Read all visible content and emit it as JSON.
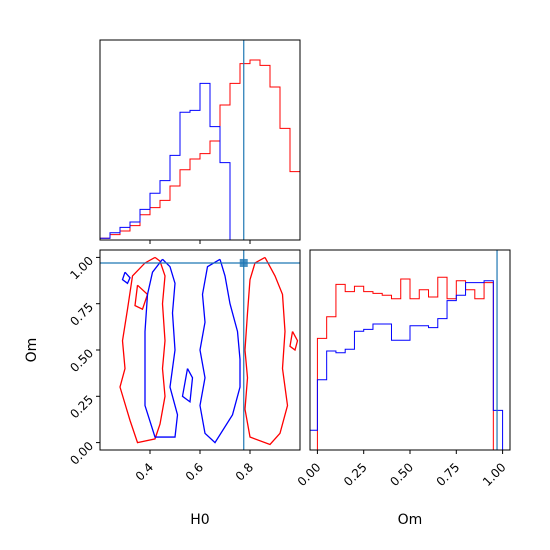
{
  "chart_data": {
    "type": "corner",
    "parameters": [
      "H0",
      "Om"
    ],
    "colors": {
      "red": "#ff0000",
      "blue": "#0000ff",
      "truth": "#1f77b4"
    },
    "truth": {
      "H0": 0.775,
      "Om": 0.97
    },
    "xlabel": "H0",
    "ylabel": "Om",
    "xlabel_om": "Om",
    "h0_axis": {
      "range": [
        0.2,
        1.0
      ],
      "ticks": [
        0.4,
        0.6,
        0.8
      ],
      "tick_labels": [
        "0.4",
        "0.6",
        "0.8"
      ]
    },
    "om_axis": {
      "range": [
        -0.04,
        1.04
      ],
      "ticks": [
        0.0,
        0.25,
        0.5,
        0.75,
        1.0
      ],
      "tick_labels": [
        "0.00",
        "0.25",
        "0.50",
        "0.75",
        "1.00"
      ]
    },
    "h0_hist": {
      "edges": [
        0.2,
        0.24,
        0.28,
        0.32,
        0.36,
        0.4,
        0.44,
        0.48,
        0.52,
        0.56,
        0.6,
        0.64,
        0.68,
        0.72,
        0.76,
        0.8,
        0.84,
        0.88,
        0.92,
        0.96,
        1.0
      ],
      "red": [
        0.01,
        0.03,
        0.05,
        0.08,
        0.14,
        0.18,
        0.22,
        0.3,
        0.39,
        0.45,
        0.48,
        0.55,
        0.75,
        0.87,
        0.98,
        1.0,
        0.97,
        0.85,
        0.62,
        0.38
      ],
      "blue": [
        0.01,
        0.04,
        0.07,
        0.1,
        0.17,
        0.26,
        0.33,
        0.47,
        0.71,
        0.72,
        0.87,
        0.63,
        0.43,
        0.0,
        0.0,
        0.0,
        0.0,
        0.0,
        0.0,
        0.0
      ]
    },
    "om_hist": {
      "edges": [
        -0.04,
        0.0,
        0.05,
        0.1,
        0.15,
        0.2,
        0.25,
        0.3,
        0.35,
        0.4,
        0.45,
        0.5,
        0.55,
        0.6,
        0.65,
        0.7,
        0.75,
        0.8,
        0.85,
        0.9,
        0.95,
        1.0
      ],
      "red": [
        0.0,
        0.62,
        0.74,
        0.92,
        0.88,
        0.91,
        0.88,
        0.87,
        0.86,
        0.84,
        0.95,
        0.84,
        0.89,
        0.85,
        0.96,
        0.84,
        0.94,
        0.89,
        0.84,
        0.93,
        0.0
      ],
      "blue": [
        0.11,
        0.39,
        0.55,
        0.54,
        0.56,
        0.66,
        0.67,
        0.7,
        0.7,
        0.61,
        0.61,
        0.69,
        0.69,
        0.68,
        0.73,
        0.83,
        0.86,
        0.93,
        0.93,
        0.94,
        0.22
      ]
    },
    "contours": {
      "red": [
        [
          [
            0.42,
            1.0
          ],
          [
            0.38,
            0.97
          ],
          [
            0.33,
            0.9
          ],
          [
            0.31,
            0.72
          ],
          [
            0.29,
            0.55
          ],
          [
            0.3,
            0.4
          ],
          [
            0.28,
            0.3
          ],
          [
            0.32,
            0.12
          ],
          [
            0.35,
            0.0
          ],
          [
            0.42,
            0.02
          ],
          [
            0.44,
            0.1
          ],
          [
            0.46,
            0.25
          ],
          [
            0.45,
            0.4
          ],
          [
            0.46,
            0.55
          ],
          [
            0.45,
            0.75
          ],
          [
            0.46,
            0.9
          ],
          [
            0.44,
            0.98
          ],
          [
            0.42,
            1.0
          ]
        ],
        [
          [
            0.86,
            1.0
          ],
          [
            0.9,
            0.9
          ],
          [
            0.93,
            0.8
          ],
          [
            0.94,
            0.6
          ],
          [
            0.93,
            0.4
          ],
          [
            0.95,
            0.2
          ],
          [
            0.92,
            0.05
          ],
          [
            0.88,
            -0.01
          ],
          [
            0.8,
            0.03
          ],
          [
            0.78,
            0.18
          ],
          [
            0.79,
            0.35
          ],
          [
            0.78,
            0.5
          ],
          [
            0.79,
            0.7
          ],
          [
            0.8,
            0.88
          ],
          [
            0.82,
            0.97
          ],
          [
            0.86,
            1.0
          ]
        ],
        [
          [
            0.35,
            0.85
          ],
          [
            0.39,
            0.8
          ],
          [
            0.37,
            0.72
          ],
          [
            0.34,
            0.74
          ],
          [
            0.35,
            0.85
          ]
        ],
        [
          [
            0.97,
            0.6
          ],
          [
            0.99,
            0.55
          ],
          [
            0.98,
            0.5
          ],
          [
            0.96,
            0.52
          ],
          [
            0.97,
            0.6
          ]
        ]
      ],
      "blue": [
        [
          [
            0.45,
            0.99
          ],
          [
            0.41,
            0.92
          ],
          [
            0.39,
            0.8
          ],
          [
            0.38,
            0.6
          ],
          [
            0.38,
            0.4
          ],
          [
            0.38,
            0.2
          ],
          [
            0.42,
            0.03
          ],
          [
            0.5,
            0.03
          ],
          [
            0.51,
            0.15
          ],
          [
            0.48,
            0.3
          ],
          [
            0.5,
            0.5
          ],
          [
            0.49,
            0.7
          ],
          [
            0.5,
            0.86
          ],
          [
            0.48,
            0.95
          ],
          [
            0.45,
            0.99
          ]
        ],
        [
          [
            0.68,
            0.99
          ],
          [
            0.7,
            0.9
          ],
          [
            0.72,
            0.75
          ],
          [
            0.75,
            0.6
          ],
          [
            0.76,
            0.45
          ],
          [
            0.76,
            0.3
          ],
          [
            0.73,
            0.15
          ],
          [
            0.66,
            0.0
          ],
          [
            0.62,
            0.05
          ],
          [
            0.6,
            0.2
          ],
          [
            0.62,
            0.35
          ],
          [
            0.6,
            0.5
          ],
          [
            0.62,
            0.65
          ],
          [
            0.61,
            0.8
          ],
          [
            0.63,
            0.95
          ],
          [
            0.68,
            0.99
          ]
        ],
        [
          [
            0.55,
            0.4
          ],
          [
            0.57,
            0.35
          ],
          [
            0.56,
            0.22
          ],
          [
            0.53,
            0.25
          ],
          [
            0.55,
            0.4
          ]
        ],
        [
          [
            0.3,
            0.92
          ],
          [
            0.32,
            0.89
          ],
          [
            0.31,
            0.86
          ],
          [
            0.29,
            0.88
          ],
          [
            0.3,
            0.92
          ]
        ]
      ]
    }
  }
}
